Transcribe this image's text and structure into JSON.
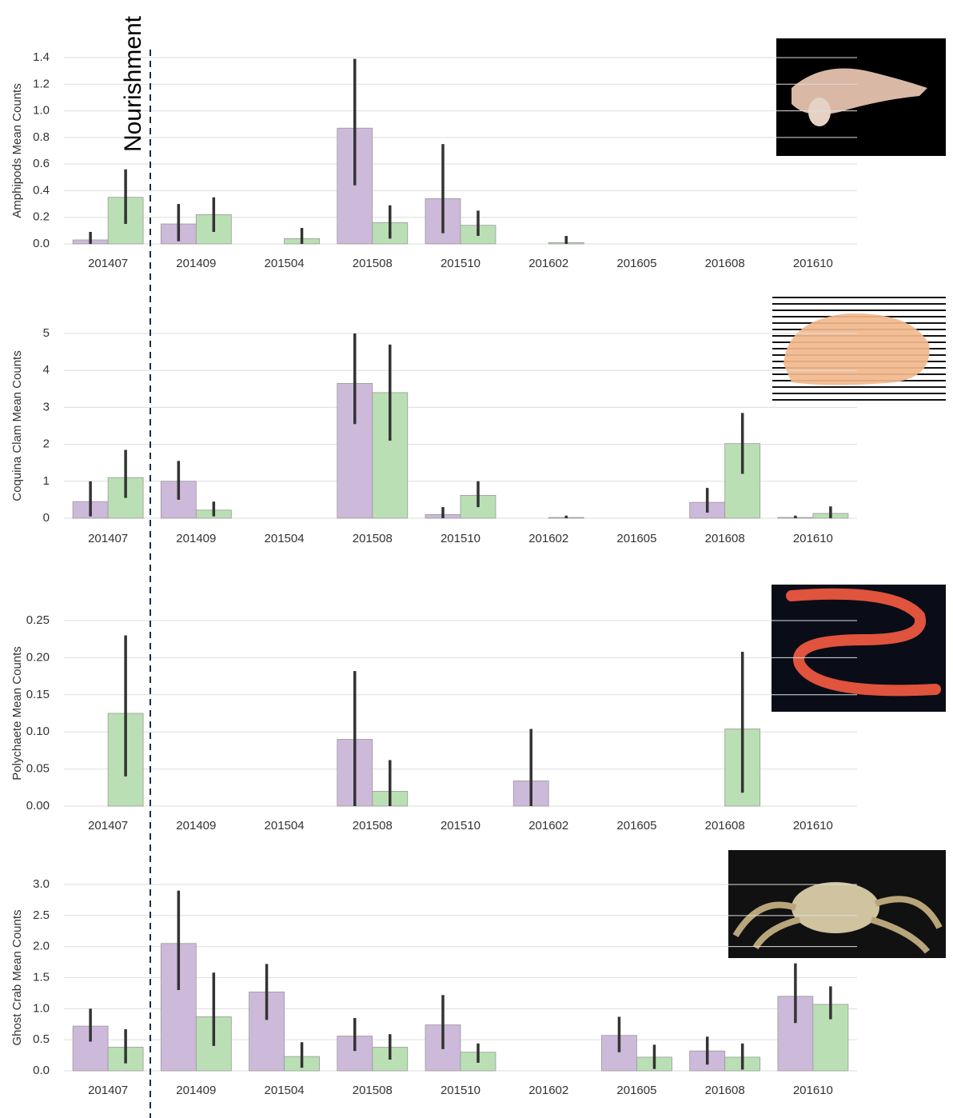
{
  "annotation": "Nourishment",
  "chart_data": [
    {
      "type": "bar",
      "ylabel": "Amphipods Mean Counts",
      "categories": [
        "201407",
        "201409",
        "201504",
        "201508",
        "201510",
        "201602",
        "201605",
        "201608",
        "201610"
      ],
      "ylim": [
        0,
        1.4
      ],
      "yticks": [
        {
          "value": 0,
          "label": "0.0"
        },
        0.2,
        0.4,
        0.6,
        0.8,
        {
          "value": 1,
          "label": "1.0"
        },
        1.2,
        1.4
      ],
      "grid": true,
      "series": [
        {
          "color": "#cdb9d9",
          "values": [
            0.03,
            0.15,
            0,
            0.87,
            0.34,
            0,
            0,
            0,
            0
          ],
          "error_low": [
            0,
            0.02,
            null,
            0.44,
            0.08,
            null,
            null,
            null,
            null
          ],
          "error_high": [
            0.09,
            0.3,
            null,
            1.39,
            0.75,
            null,
            null,
            null,
            null
          ]
        },
        {
          "color": "#badfb4",
          "values": [
            0.35,
            0.22,
            0.04,
            0.16,
            0.14,
            0.01,
            0,
            0,
            0
          ],
          "error_low": [
            0.15,
            0.09,
            0,
            0.04,
            0.06,
            0,
            null,
            null,
            null
          ],
          "error_high": [
            0.56,
            0.35,
            0.12,
            0.29,
            0.25,
            0.06,
            null,
            null,
            null
          ]
        }
      ]
    },
    {
      "type": "bar",
      "ylabel": "Coquina Clam Mean Counts",
      "categories": [
        "201407",
        "201409",
        "201504",
        "201508",
        "201510",
        "201602",
        "201605",
        "201608",
        "201610"
      ],
      "ylim": [
        0,
        5
      ],
      "yticks": [
        0,
        1,
        2,
        3,
        4,
        5
      ],
      "grid": true,
      "series": [
        {
          "color": "#cdb9d9",
          "values": [
            0.45,
            1.0,
            0,
            3.65,
            0.1,
            0,
            0,
            0.43,
            0.02
          ],
          "error_low": [
            0.05,
            0.5,
            null,
            2.55,
            0,
            null,
            null,
            0.15,
            0
          ],
          "error_high": [
            1.0,
            1.55,
            null,
            5.0,
            0.3,
            null,
            null,
            0.82,
            0.07
          ]
        },
        {
          "color": "#badfb4",
          "values": [
            1.1,
            0.22,
            0,
            3.4,
            0.62,
            0.02,
            0,
            2.02,
            0.13
          ],
          "error_low": [
            0.55,
            0.05,
            null,
            2.1,
            0.3,
            0,
            null,
            1.2,
            0
          ],
          "error_high": [
            1.85,
            0.45,
            null,
            4.7,
            1.0,
            0.07,
            null,
            2.85,
            0.32
          ]
        }
      ]
    },
    {
      "type": "bar",
      "ylabel": "Polychaete Mean Counts",
      "categories": [
        "201407",
        "201409",
        "201504",
        "201508",
        "201510",
        "201602",
        "201605",
        "201608",
        "201610"
      ],
      "ylim": [
        0,
        0.25
      ],
      "yticks": [
        {
          "value": 0,
          "label": "0.00"
        },
        0.05,
        {
          "value": 0.1,
          "label": "0.10"
        },
        0.15,
        {
          "value": 0.2,
          "label": "0.20"
        },
        0.25
      ],
      "grid": true,
      "series": [
        {
          "color": "#cdb9d9",
          "values": [
            0,
            0,
            0,
            0.09,
            0,
            0.034,
            0,
            0,
            0
          ],
          "error_low": [
            null,
            null,
            null,
            0,
            null,
            0,
            null,
            null,
            null
          ],
          "error_high": [
            null,
            null,
            null,
            0.182,
            null,
            0.104,
            null,
            null,
            null
          ]
        },
        {
          "color": "#badfb4",
          "values": [
            0.125,
            0,
            0,
            0.02,
            0,
            0,
            0,
            0.104,
            0
          ],
          "error_low": [
            0.04,
            null,
            null,
            0,
            null,
            null,
            null,
            0.018,
            null
          ],
          "error_high": [
            0.23,
            null,
            null,
            0.062,
            null,
            null,
            null,
            0.208,
            null
          ]
        }
      ]
    },
    {
      "type": "bar",
      "ylabel": "Ghost Crab Mean Counts",
      "categories": [
        "201407",
        "201409",
        "201504",
        "201508",
        "201510",
        "201602",
        "201605",
        "201608",
        "201610"
      ],
      "ylim": [
        0,
        3
      ],
      "yticks": [
        {
          "value": 0,
          "label": "0.0"
        },
        0.5,
        {
          "value": 1,
          "label": "1.0"
        },
        1.5,
        {
          "value": 2,
          "label": "2.0"
        },
        2.5,
        {
          "value": 3,
          "label": "3.0"
        }
      ],
      "grid": true,
      "series": [
        {
          "color": "#cdb9d9",
          "values": [
            0.72,
            2.05,
            1.27,
            0.56,
            0.74,
            0,
            0.57,
            0.32,
            1.2
          ],
          "error_low": [
            0.47,
            1.3,
            0.82,
            0.32,
            0.35,
            null,
            0.3,
            0.1,
            0.77
          ],
          "error_high": [
            1.0,
            2.9,
            1.72,
            0.85,
            1.22,
            null,
            0.87,
            0.55,
            1.73
          ]
        },
        {
          "color": "#badfb4",
          "values": [
            0.38,
            0.87,
            0.23,
            0.38,
            0.3,
            0,
            0.22,
            0.22,
            1.07
          ],
          "error_low": [
            0.12,
            0.4,
            0.05,
            0.18,
            0.13,
            null,
            0.03,
            0.02,
            0.83
          ],
          "error_high": [
            0.67,
            1.58,
            0.46,
            0.59,
            0.44,
            null,
            0.42,
            0.44,
            1.36
          ]
        }
      ]
    }
  ]
}
